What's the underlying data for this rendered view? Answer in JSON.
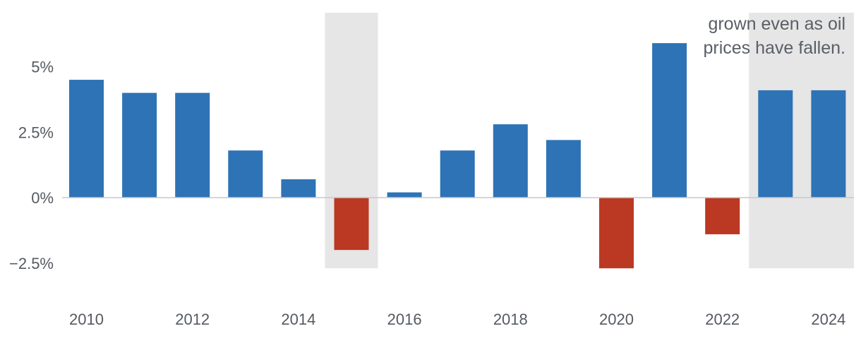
{
  "chart_data": {
    "type": "bar",
    "categories": [
      "2010",
      "2011",
      "2012",
      "2013",
      "2014",
      "2015",
      "2016",
      "2017",
      "2018",
      "2019",
      "2020",
      "2021",
      "2022",
      "2023",
      "2024"
    ],
    "values": [
      4.5,
      4.0,
      4.0,
      1.8,
      0.7,
      -2.0,
      0.2,
      1.8,
      2.8,
      2.2,
      -2.7,
      5.9,
      -1.4,
      4.1,
      4.1
    ],
    "x_tick_labels": [
      "2010",
      "2012",
      "2014",
      "2016",
      "2018",
      "2020",
      "2022",
      "2024"
    ],
    "y_ticks": [
      {
        "value": 5,
        "label": "5%"
      },
      {
        "value": 2.5,
        "label": "2.5%"
      },
      {
        "value": 0,
        "label": "0%"
      },
      {
        "value": -2.5,
        "label": "−2.5%"
      }
    ],
    "ylim": [
      -3.8,
      7.0
    ],
    "shaded_periods": [
      [
        "2015",
        "2015"
      ],
      [
        "2023",
        "2024"
      ]
    ],
    "annotation": [
      "grown even as oil",
      "prices have fallen."
    ],
    "colors": {
      "positive": "#2e73b5",
      "negative": "#bb3822",
      "shade": "#e6e6e6",
      "zero_line": "#c8c8c8"
    },
    "grid": false,
    "legend": "none",
    "title": "",
    "xlabel": "",
    "ylabel": ""
  }
}
